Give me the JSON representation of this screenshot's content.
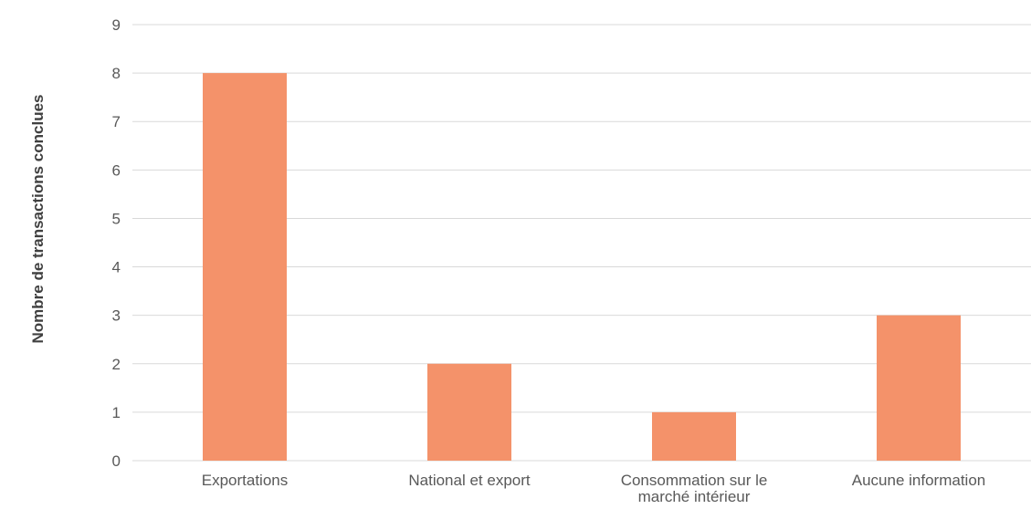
{
  "chart_data": {
    "type": "bar",
    "title": "",
    "xlabel": "",
    "ylabel": "Nombre de transactions conclues",
    "categories": [
      [
        "Exportations"
      ],
      [
        "National et export"
      ],
      [
        "Consommation sur le",
        "marché intérieur"
      ],
      [
        "Aucune information"
      ]
    ],
    "values": [
      8,
      2,
      1,
      3
    ],
    "ylim": [
      0,
      9
    ],
    "yticks": [
      0,
      1,
      2,
      3,
      4,
      5,
      6,
      7,
      8,
      9
    ],
    "grid": true,
    "legend": "none",
    "colors": {
      "bar": "#f4926a",
      "grid": "#d9d9d9",
      "text": "#595959"
    }
  }
}
